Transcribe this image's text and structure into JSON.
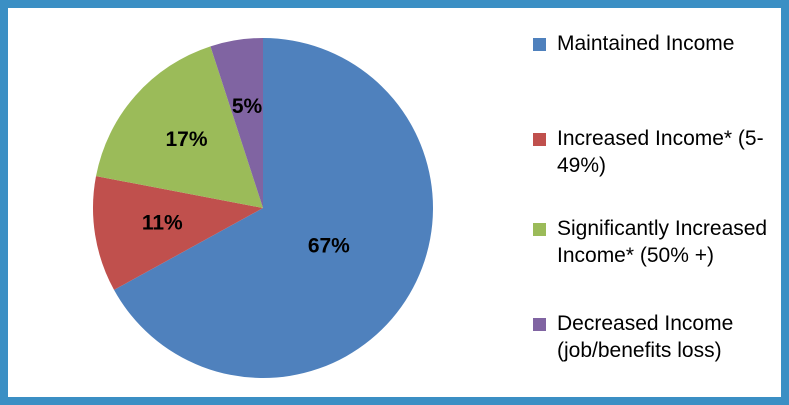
{
  "chart_data": {
    "type": "pie",
    "categories": [
      "Maintained Income",
      "Increased Income* (5-49%)",
      "Significantly Increased Income* (50% +)",
      "Decreased Income (job/benefits loss)"
    ],
    "values": [
      67,
      11,
      17,
      5
    ],
    "value_labels": [
      "67%",
      "11%",
      "17%",
      "5%"
    ],
    "colors": [
      "#4f81bd",
      "#c0504d",
      "#9bbb59",
      "#8064a2"
    ],
    "legend": "right"
  }
}
